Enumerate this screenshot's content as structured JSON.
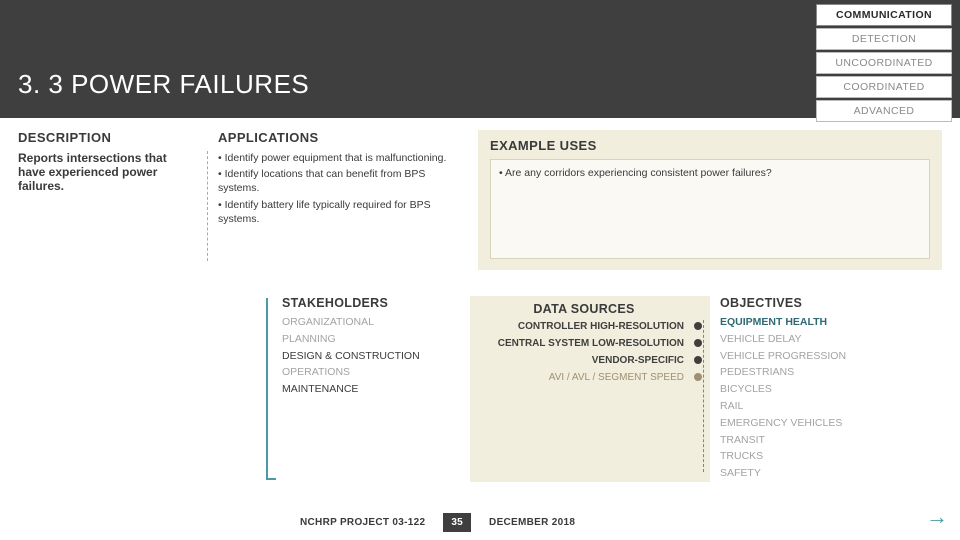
{
  "header": {
    "title": "3. 3 POWER FAILURES"
  },
  "chips": [
    {
      "label": "COMMUNICATION",
      "active": true
    },
    {
      "label": "DETECTION",
      "active": false
    },
    {
      "label": "UNCOORDINATED",
      "active": false
    },
    {
      "label": "COORDINATED",
      "active": false
    },
    {
      "label": "ADVANCED",
      "active": false
    }
  ],
  "description": {
    "heading": "DESCRIPTION",
    "text": "Reports intersections that have experienced power failures."
  },
  "applications": {
    "heading": "APPLICATIONS",
    "items": [
      "Identify power equipment that is malfunctioning.",
      "Identify locations that can benefit from BPS systems.",
      "Identify battery life typically required for BPS systems."
    ]
  },
  "example": {
    "heading": "EXAMPLE USES",
    "items": [
      "Are any corridors experiencing consistent power failures?"
    ]
  },
  "stakeholders": {
    "heading": "STAKEHOLDERS",
    "items": [
      {
        "label": "ORGANIZATIONAL",
        "dim": true
      },
      {
        "label": "PLANNING",
        "dim": true
      },
      {
        "label": "DESIGN & CONSTRUCTION",
        "dim": false
      },
      {
        "label": "OPERATIONS",
        "dim": true
      },
      {
        "label": "MAINTENANCE",
        "dim": false
      }
    ]
  },
  "datasources": {
    "heading": "DATA SOURCES",
    "items": [
      {
        "label": "CONTROLLER HIGH-RESOLUTION",
        "on": true
      },
      {
        "label": "CENTRAL SYSTEM LOW-RESOLUTION",
        "on": true
      },
      {
        "label": "VENDOR-SPECIFIC",
        "on": true
      },
      {
        "label": "AVI / AVL / SEGMENT SPEED",
        "on": false
      }
    ]
  },
  "objectives": {
    "heading": "OBJECTIVES",
    "items": [
      {
        "label": "EQUIPMENT HEALTH",
        "hl": true
      },
      {
        "label": "VEHICLE DELAY",
        "dim": true
      },
      {
        "label": "VEHICLE PROGRESSION",
        "dim": true
      },
      {
        "label": "PEDESTRIANS",
        "dim": true
      },
      {
        "label": "BICYCLES",
        "dim": true
      },
      {
        "label": "RAIL",
        "dim": true
      },
      {
        "label": "EMERGENCY VEHICLES",
        "dim": true
      },
      {
        "label": "TRANSIT",
        "dim": true
      },
      {
        "label": "TRUCKS",
        "dim": true
      },
      {
        "label": "SAFETY",
        "dim": true
      }
    ]
  },
  "footer": {
    "project": "NCHRP PROJECT 03-122",
    "page": "35",
    "date": "DECEMBER 2018"
  },
  "colors": {
    "header_bg": "#3f3f3f",
    "accent": "#4b9aa4",
    "panel": "#f1eede",
    "dim_text": "#a3a3a3"
  }
}
